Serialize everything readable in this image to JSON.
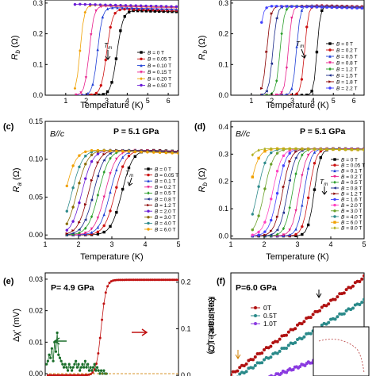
{
  "figure": {
    "panels": {
      "a": {
        "xlabel": "Temperature (K)",
        "ylabel_main": "R",
        "ylabel_sub": "b",
        "ylabel_unit": " (Ω)",
        "annotation_main": "T",
        "annotation_sub": "m",
        "legend_prefix": "B = ",
        "legend": [
          "0 T",
          "0.05 T",
          "0.10 T",
          "0.15 T",
          "0.20 T",
          "0.50 T"
        ]
      },
      "b": {
        "xlabel": "Temperature (K)",
        "ylabel_main": "R",
        "ylabel_sub": "b",
        "ylabel_unit": " (Ω)",
        "annotation_main": "T",
        "annotation_sub": "m",
        "legend_prefix": "B = ",
        "legend": [
          "0 T",
          "0.2 T",
          "0.5 T",
          "0.8 T",
          "1.2 T",
          "1.5 T",
          "1.8 T",
          "2.2 T"
        ]
      },
      "c": {
        "letter": "(c)",
        "field_label": "B//c",
        "pressure_label": "P = 5.1 GPa",
        "xlabel": "Temperature (K)",
        "ylabel_main": "R",
        "ylabel_sub": "a",
        "ylabel_unit": " (Ω)",
        "annotation_main": "T",
        "annotation_sub": "m",
        "legend_prefix": "B = ",
        "legend": [
          "0 T",
          "0.05 T",
          "0.1 T",
          "0.2 T",
          "0.5 T",
          "0.8 T",
          "1.2 T",
          "2.0 T",
          "3.0 T",
          "4.0 T",
          "6.0 T"
        ]
      },
      "d": {
        "letter": "(d)",
        "field_label": "B//c",
        "pressure_label": "P = 5.1 GPa",
        "xlabel": "Temperature (K)",
        "ylabel_main": "R",
        "ylabel_sub": "b",
        "ylabel_unit": " (Ω)",
        "annotation_main": "T",
        "annotation_sub": "m",
        "legend_prefix": "B = ",
        "legend": [
          "0 T",
          "0.05 T",
          "0.1 T",
          "0.2 T",
          "0.5 T",
          "0.8 T",
          "1.2 T",
          "1.6 T",
          "2.0 T",
          "3.0 T",
          "4.0 T",
          "6.0 T",
          "8.0 T"
        ]
      },
      "e": {
        "letter": "(e)",
        "pressure_label": "P= 4.9 GPa",
        "ylabel_left": "Δχ' (mV)",
        "ylabel_right": "Resistance (Ω)"
      },
      "f": {
        "letter": "(f)",
        "pressure_label": "P=6.0 GPa",
        "ylabel": "C/T (arb.units)",
        "legend": [
          "0T",
          "0.5T",
          "1.0T"
        ]
      }
    }
  },
  "chart_data": [
    {
      "panel": "a",
      "type": "line",
      "xlabel": "Temperature (K)",
      "ylabel": "R_b (Ω)",
      "xlim": [
        0,
        6.5
      ],
      "ylim": [
        0,
        0.31
      ],
      "xticks": [
        1,
        2,
        3,
        4,
        5,
        6
      ],
      "yticks": [
        0.0,
        0.1,
        0.2,
        0.3
      ],
      "series": [
        {
          "name": "B = 0 T",
          "color": "#000000",
          "marker": "square",
          "Tc": 3.5,
          "width": 0.32,
          "rn": 0.275,
          "x0": 2.2,
          "x1": 6.4
        },
        {
          "name": "B = 0.05 T",
          "color": "#cc1010",
          "marker": "circle",
          "Tc": 3.0,
          "width": 0.3,
          "rn": 0.28,
          "x0": 1.8,
          "x1": 6.4
        },
        {
          "name": "B = 0.10 T",
          "color": "#1f3fd6",
          "marker": "triangle",
          "Tc": 2.55,
          "width": 0.26,
          "rn": 0.285,
          "x0": 1.6,
          "x1": 6.4
        },
        {
          "name": "B = 0.15 T",
          "color": "#e8208c",
          "marker": "triangle-down",
          "Tc": 2.15,
          "width": 0.25,
          "rn": 0.29,
          "x0": 1.5,
          "x1": 6.4
        },
        {
          "name": "B = 0.20 T",
          "color": "#f0a000",
          "marker": "diamond",
          "Tc": 1.7,
          "width": 0.22,
          "rn": 0.293,
          "x0": 1.45,
          "x1": 6.4
        },
        {
          "name": "B = 0.50 T",
          "color": "#6a1bd6",
          "marker": "circle",
          "Tc": 0.9,
          "width": 0.2,
          "rn": 0.296,
          "x0": 1.45,
          "x1": 6.4
        }
      ]
    },
    {
      "panel": "b",
      "type": "line",
      "xlabel": "Temperature (K)",
      "ylabel": "R_b (Ω)",
      "xlim": [
        0,
        6.5
      ],
      "ylim": [
        0,
        0.31
      ],
      "xticks": [
        1,
        2,
        3,
        4,
        5,
        6
      ],
      "yticks": [
        0.0,
        0.1,
        0.2,
        0.3
      ],
      "series": [
        {
          "name": "B = 0 T",
          "color": "#000000",
          "marker": "square",
          "Tc": 4.2,
          "width": 0.18,
          "rn": 0.29,
          "x0": 1.5,
          "x1": 6.4
        },
        {
          "name": "B = 0.2 T",
          "color": "#cc1010",
          "marker": "circle",
          "Tc": 3.6,
          "width": 0.2,
          "rn": 0.292,
          "x0": 1.5,
          "x1": 6.4
        },
        {
          "name": "B = 0.5 T",
          "color": "#1f3fd6",
          "marker": "triangle",
          "Tc": 3.2,
          "width": 0.2,
          "rn": 0.292,
          "x0": 1.5,
          "x1": 6.4
        },
        {
          "name": "B = 0.8 T",
          "color": "#e8208c",
          "marker": "triangle-down",
          "Tc": 2.8,
          "width": 0.2,
          "rn": 0.29,
          "x0": 1.5,
          "x1": 6.4
        },
        {
          "name": "B = 1.2 T",
          "color": "#2a9e2a",
          "marker": "diamond",
          "Tc": 2.4,
          "width": 0.22,
          "rn": 0.29,
          "x0": 1.5,
          "x1": 6.4
        },
        {
          "name": "B = 1.5 T",
          "color": "#1a2a8a",
          "marker": "triangle-left",
          "Tc": 2.05,
          "width": 0.22,
          "rn": 0.29,
          "x0": 1.5,
          "x1": 6.4
        },
        {
          "name": "B = 1.8 T",
          "color": "#8b0000",
          "marker": "triangle-right",
          "Tc": 1.75,
          "width": 0.22,
          "rn": 0.29,
          "x0": 1.5,
          "x1": 6.4
        },
        {
          "name": "B = 2.2 T",
          "color": "#4040ff",
          "marker": "hexagon",
          "Tc": 1.35,
          "width": 0.22,
          "rn": 0.29,
          "x0": 1.5,
          "x1": 6.4
        }
      ]
    },
    {
      "panel": "c",
      "type": "line",
      "xlabel": "Temperature (K)",
      "ylabel": "R_a (Ω)",
      "xlim": [
        1,
        5
      ],
      "ylim": [
        -0.005,
        0.15
      ],
      "xticks": [
        1,
        2,
        3,
        4,
        5
      ],
      "yticks": [
        0.0,
        0.05,
        0.1,
        0.15
      ],
      "series": [
        {
          "name": "B = 0 T",
          "color": "#000000",
          "marker": "square",
          "Tc": 3.3,
          "width": 0.35,
          "rn": 0.112,
          "x0": 1.65,
          "x1": 5.0
        },
        {
          "name": "B = 0.05 T",
          "color": "#cc1010",
          "marker": "circle",
          "Tc": 3.1,
          "width": 0.35,
          "rn": 0.112,
          "x0": 1.65,
          "x1": 5.0
        },
        {
          "name": "B = 0.1 T",
          "color": "#1f3fd6",
          "marker": "triangle",
          "Tc": 2.95,
          "width": 0.35,
          "rn": 0.112,
          "x0": 1.65,
          "x1": 5.0
        },
        {
          "name": "B = 0.2 T",
          "color": "#e8208c",
          "marker": "triangle-down",
          "Tc": 2.8,
          "width": 0.35,
          "rn": 0.112,
          "x0": 1.65,
          "x1": 5.0
        },
        {
          "name": "B = 0.5 T",
          "color": "#2a9e2a",
          "marker": "diamond",
          "Tc": 2.6,
          "width": 0.35,
          "rn": 0.112,
          "x0": 1.65,
          "x1": 5.0
        },
        {
          "name": "B = 0.8 T",
          "color": "#1a2a8a",
          "marker": "triangle-left",
          "Tc": 2.45,
          "width": 0.35,
          "rn": 0.112,
          "x0": 1.65,
          "x1": 5.0
        },
        {
          "name": "B = 1.2 T",
          "color": "#8b0000",
          "marker": "triangle-right",
          "Tc": 2.3,
          "width": 0.35,
          "rn": 0.112,
          "x0": 1.65,
          "x1": 5.0
        },
        {
          "name": "B = 2.0 T",
          "color": "#6a1bd6",
          "marker": "hexagon",
          "Tc": 2.1,
          "width": 0.35,
          "rn": 0.112,
          "x0": 1.65,
          "x1": 5.0
        },
        {
          "name": "B = 3.0 T",
          "color": "#8a6a00",
          "marker": "star",
          "Tc": 1.95,
          "width": 0.35,
          "rn": 0.112,
          "x0": 1.65,
          "x1": 5.0
        },
        {
          "name": "B = 4.0 T",
          "color": "#2e8b8b",
          "marker": "pentagon",
          "Tc": 1.8,
          "width": 0.35,
          "rn": 0.112,
          "x0": 1.65,
          "x1": 5.0
        },
        {
          "name": "B = 6.0 T",
          "color": "#f0a000",
          "marker": "circle",
          "Tc": 1.6,
          "width": 0.35,
          "rn": 0.112,
          "x0": 1.65,
          "x1": 5.0
        }
      ]
    },
    {
      "panel": "d",
      "type": "line",
      "xlabel": "Temperature (K)",
      "ylabel": "R_b (Ω)",
      "xlim": [
        1,
        5
      ],
      "ylim": [
        -0.01,
        0.42
      ],
      "xticks": [
        1,
        2,
        3,
        4,
        5
      ],
      "yticks": [
        0.0,
        0.1,
        0.2,
        0.3,
        0.4
      ],
      "series": [
        {
          "name": "B = 0 T",
          "color": "#000000",
          "marker": "square",
          "Tc": 3.5,
          "width": 0.2,
          "rn": 0.32,
          "x0": 1.65,
          "x1": 5.0
        },
        {
          "name": "B = 0.05 T",
          "color": "#cc1010",
          "marker": "circle",
          "Tc": 3.35,
          "width": 0.22,
          "rn": 0.32,
          "x0": 1.65,
          "x1": 5.0
        },
        {
          "name": "B = 0.1 T",
          "color": "#1f3fd6",
          "marker": "triangle",
          "Tc": 3.2,
          "width": 0.22,
          "rn": 0.32,
          "x0": 1.65,
          "x1": 5.0
        },
        {
          "name": "B = 0.2 T",
          "color": "#e8208c",
          "marker": "triangle-down",
          "Tc": 3.05,
          "width": 0.24,
          "rn": 0.32,
          "x0": 1.65,
          "x1": 5.0
        },
        {
          "name": "B = 0.5 T",
          "color": "#2a9e2a",
          "marker": "diamond",
          "Tc": 2.85,
          "width": 0.25,
          "rn": 0.32,
          "x0": 1.65,
          "x1": 5.0
        },
        {
          "name": "B = 0.8 T",
          "color": "#1a2a8a",
          "marker": "triangle-left",
          "Tc": 2.7,
          "width": 0.26,
          "rn": 0.32,
          "x0": 1.65,
          "x1": 5.0
        },
        {
          "name": "B = 1.2 T",
          "color": "#8b0000",
          "marker": "triangle-right",
          "Tc": 2.55,
          "width": 0.27,
          "rn": 0.32,
          "x0": 1.65,
          "x1": 5.0
        },
        {
          "name": "B = 1.6 T",
          "color": "#4040ff",
          "marker": "hexagon",
          "Tc": 2.4,
          "width": 0.28,
          "rn": 0.32,
          "x0": 1.65,
          "x1": 5.0
        },
        {
          "name": "B = 2.0 T",
          "color": "#ff40c0",
          "marker": "star",
          "Tc": 2.25,
          "width": 0.3,
          "rn": 0.32,
          "x0": 1.65,
          "x1": 5.0
        },
        {
          "name": "B = 3.0 T",
          "color": "#6aa02a",
          "marker": "pentagon",
          "Tc": 2.0,
          "width": 0.3,
          "rn": 0.32,
          "x0": 1.65,
          "x1": 5.0
        },
        {
          "name": "B = 4.0 T",
          "color": "#2e8b8b",
          "marker": "circle",
          "Tc": 1.8,
          "width": 0.3,
          "rn": 0.32,
          "x0": 1.65,
          "x1": 5.0
        },
        {
          "name": "B = 6.0 T",
          "color": "#f0a000",
          "marker": "square",
          "Tc": 1.55,
          "width": 0.3,
          "rn": 0.32,
          "x0": 1.65,
          "x1": 5.0
        },
        {
          "name": "B = 8.0 T",
          "color": "#b0b020",
          "marker": "diamond",
          "Tc": 1.3,
          "width": 0.3,
          "rn": 0.32,
          "x0": 1.65,
          "x1": 5.0
        }
      ]
    },
    {
      "panel": "e",
      "type": "line",
      "ylabel_left": "Δχ' (mV)",
      "ylabel_right": "Resistance (Ω)",
      "xlim": [
        1,
        6
      ],
      "ylim_left": [
        -0.002,
        0.032
      ],
      "ylim_right": [
        -0.01,
        0.22
      ],
      "yticks_left": [
        0.0,
        0.01,
        0.02,
        0.03
      ],
      "yticks_right": [
        0.0,
        0.1,
        0.2
      ],
      "series": [
        {
          "name": "Resistance",
          "axis": "right",
          "color": "#c01010",
          "Tc": 3.1,
          "width": 0.2,
          "rn": 0.205,
          "x0": 1.1,
          "x1": 6.0
        },
        {
          "name": "Δχ'",
          "axis": "left",
          "color": "#1a6e2a",
          "x": [
            1.05,
            1.1,
            1.15,
            1.2,
            1.25,
            1.3,
            1.35,
            1.4,
            1.45,
            1.5,
            1.55,
            1.6,
            1.65,
            1.7,
            1.75,
            1.8,
            1.85,
            1.9,
            1.95,
            2.0,
            2.05,
            2.1,
            2.15,
            2.2,
            2.25,
            2.3,
            2.35,
            2.4,
            2.45,
            2.5,
            2.55,
            2.6,
            2.65,
            2.7,
            2.75,
            2.8,
            2.85,
            2.9,
            2.95,
            3.0,
            3.05,
            3.1,
            3.15,
            3.2,
            3.25,
            3.3
          ],
          "y": [
            0.003,
            0.004,
            0.006,
            0.005,
            0.008,
            0.004,
            0.01,
            0.007,
            0.013,
            0.006,
            0.005,
            0.004,
            0.003,
            0.002,
            0.003,
            0.002,
            0.001,
            0.003,
            0.002,
            0.001,
            0.002,
            0.003,
            0.004,
            0.002,
            0.003,
            0.001,
            0.002,
            0.003,
            0.002,
            0.004,
            0.002,
            0.003,
            0.001,
            0.002,
            0.001,
            0.002,
            0.003,
            0.001,
            0.002,
            0.001,
            0.0,
            0.001,
            0.0,
            0.001,
            0.0,
            0.0
          ]
        }
      ]
    },
    {
      "panel": "f",
      "type": "line",
      "ylabel": "C/T (arb.units)",
      "xlim": [
        1,
        6
      ],
      "ylim": [
        0,
        1
      ],
      "series": [
        {
          "name": "0T",
          "color": "#b01010",
          "x": [
            1.0,
            6.0
          ],
          "y": [
            0.05,
            0.96
          ]
        },
        {
          "name": "0.5T",
          "color": "#2a8a8a",
          "x": [
            1.0,
            6.0
          ],
          "y": [
            0.0,
            0.74
          ]
        },
        {
          "name": "1.0T",
          "color": "#8a3ae0",
          "x": [
            2.2,
            6.0
          ],
          "y": [
            0.0,
            0.35
          ]
        }
      ]
    }
  ]
}
